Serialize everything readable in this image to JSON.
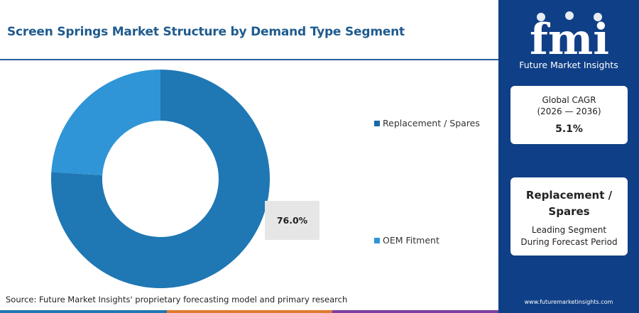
{
  "header": {
    "title": "Screen Springs Market Structure by Demand Type Segment"
  },
  "chart_data": {
    "type": "pie",
    "donut": true,
    "categories": [
      "Replacement / Spares",
      "OEM Fitment"
    ],
    "values": [
      76.0,
      24.0
    ],
    "colors": [
      "#1f77b4",
      "#2f95d6"
    ],
    "data_labels": [
      {
        "category": "Replacement / Spares",
        "text": "76.0%"
      }
    ],
    "legend_placement": "right",
    "start_angle_deg": 0
  },
  "legend": {
    "items": [
      {
        "label": "Replacement / Spares",
        "color": "#1a6aa8"
      },
      {
        "label": "OEM Fitment",
        "color": "#2f95d6"
      }
    ]
  },
  "callout": {
    "value": "76.0%"
  },
  "source": {
    "text": "Source: Future Market Insights' proprietary forecasting model and primary research"
  },
  "sidebar": {
    "brand_letters": "fmi",
    "brand_name": "Future Market Insights",
    "cagr_card": {
      "line1": "Global CAGR",
      "line2": "(2026 — 2036)",
      "value": "5.1%"
    },
    "segment_card": {
      "line1": "Replacement /",
      "line2": "Spares",
      "desc1": "Leading Segment",
      "desc2": "During Forecast Period"
    },
    "website": "www.futuremarketinsights.com"
  },
  "colors": {
    "sidebar": "#0f3f86",
    "title": "#1f5b8e",
    "footer": [
      "#1f77b4",
      "#e07a2e",
      "#7b3fa0"
    ]
  }
}
